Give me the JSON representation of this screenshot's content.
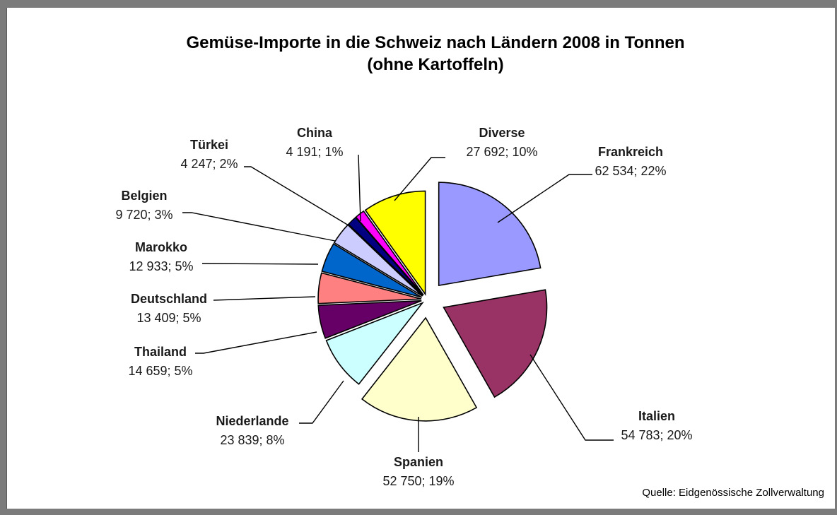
{
  "chart_data": {
    "type": "pie",
    "title": "Gemüse-Importe in die Schweiz nach Ländern 2008 in Tonnen",
    "subtitle": "(ohne Kartoffeln)",
    "unit": "Tonnen",
    "source": "Quelle: Eidgenössische Zollverwaltung",
    "exploded": true,
    "slices": [
      {
        "name": "Frankreich",
        "value": 62534,
        "percent": 22,
        "label": "62 534; 22%",
        "color": "#9999ff"
      },
      {
        "name": "Italien",
        "value": 54783,
        "percent": 20,
        "label": "54 783; 20%",
        "color": "#993366"
      },
      {
        "name": "Spanien",
        "value": 52750,
        "percent": 19,
        "label": "52 750; 19%",
        "color": "#ffffcc"
      },
      {
        "name": "Niederlande",
        "value": 23839,
        "percent": 8,
        "label": "23 839; 8%",
        "color": "#ccffff"
      },
      {
        "name": "Thailand",
        "value": 14659,
        "percent": 5,
        "label": "14 659; 5%",
        "color": "#660066"
      },
      {
        "name": "Deutschland",
        "value": 13409,
        "percent": 5,
        "label": "13 409; 5%",
        "color": "#ff8080"
      },
      {
        "name": "Marokko",
        "value": 12933,
        "percent": 5,
        "label": "12 933; 5%",
        "color": "#0066cc"
      },
      {
        "name": "Belgien",
        "value": 9720,
        "percent": 3,
        "label": "9 720; 3%",
        "color": "#ccccff"
      },
      {
        "name": "Türkei",
        "value": 4247,
        "percent": 2,
        "label": "4 247; 2%",
        "color": "#000080"
      },
      {
        "name": "China",
        "value": 4191,
        "percent": 1,
        "label": "4 191; 1%",
        "color": "#ff00ff"
      },
      {
        "name": "Diverse",
        "value": 27692,
        "percent": 10,
        "label": "27 692; 10%",
        "color": "#ffff00"
      }
    ]
  }
}
